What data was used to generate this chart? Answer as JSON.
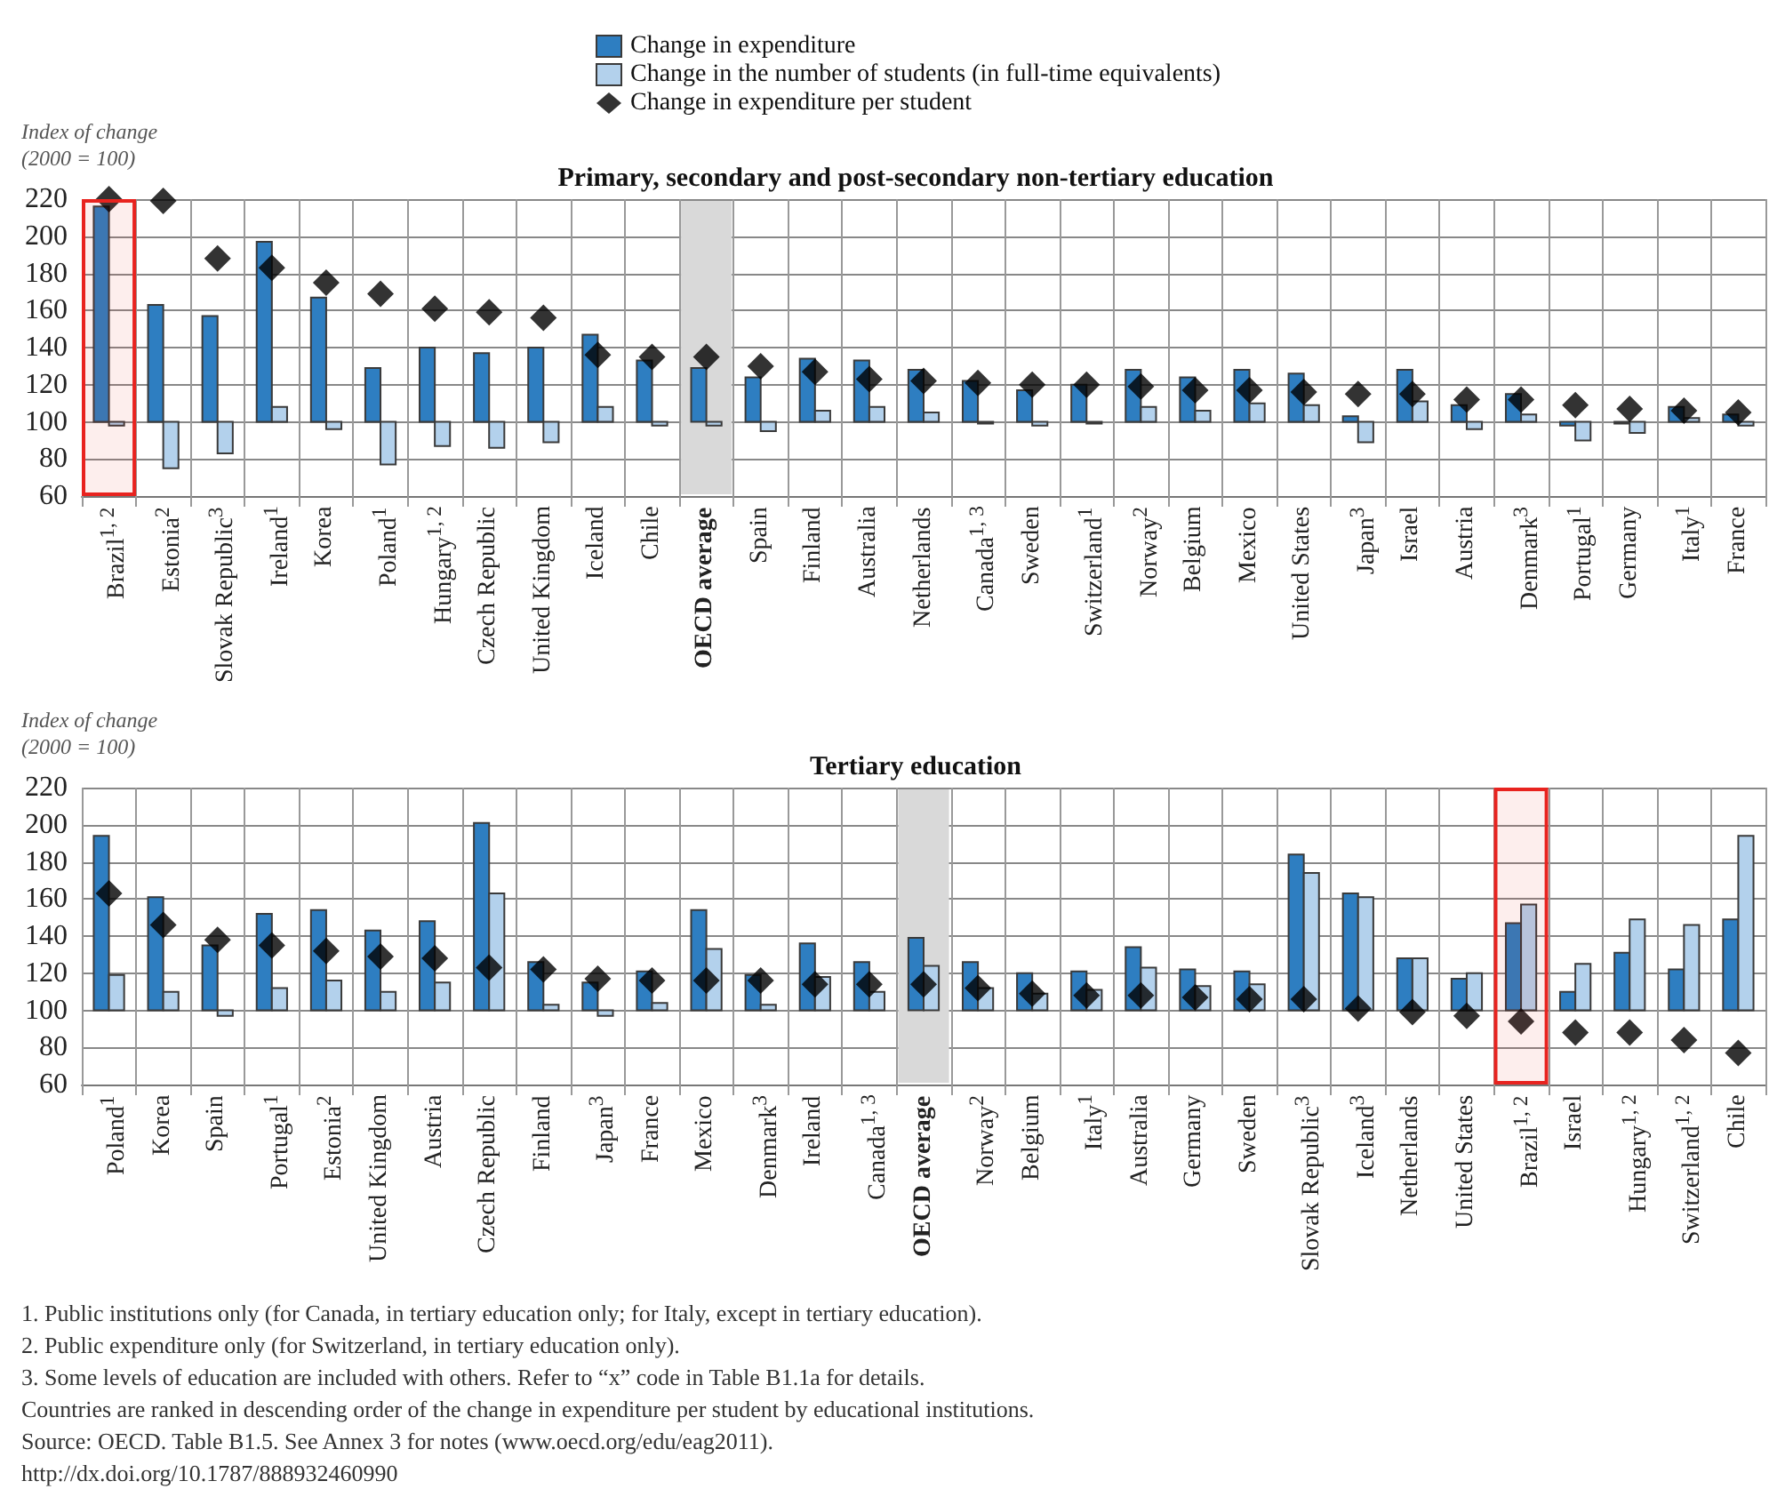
{
  "chart_data": [
    {
      "type": "bar",
      "title": "Primary, secondary and post-secondary non-tertiary education",
      "ylabel": "Index of change\n(2000 = 100)",
      "categories": [
        "Brazil$^{1, 2}$",
        "Estonia$^{2}$",
        "Slovak Republic$^{3}$",
        "Ireland$^{1}$",
        "Korea",
        "Poland$^{1}$",
        "Hungary$^{1, 2}$",
        "Czech Republic",
        "United Kingdom",
        "Iceland",
        "Chile",
        "OECD average",
        "Spain",
        "Finland",
        "Australia",
        "Netherlands",
        "Canada$^{1, 3}$",
        "Sweden",
        "Switzerland$^{1}$",
        "Norway$^{2}$",
        "Belgium",
        "Mexico",
        "United States",
        "Japan$^{3}$",
        "Israel",
        "Austria",
        "Denmark$^{3}$",
        "Portugal$^{1}$",
        "Germany",
        "Italy$^{1}$",
        "France"
      ],
      "series": [
        {
          "name": "Change in expenditure",
          "color": "#2e7ec1",
          "base": [
            100,
            100,
            100,
            100,
            100,
            100,
            100,
            100,
            100,
            100,
            100,
            100,
            100,
            100,
            100,
            100,
            100,
            100,
            100,
            100,
            100,
            100,
            100,
            100,
            100,
            100,
            100,
            100,
            100,
            100,
            100
          ],
          "values": [
            116,
            63,
            57,
            97,
            67,
            29,
            40,
            37,
            40,
            47,
            33,
            29,
            24,
            34,
            33,
            28,
            22,
            17,
            20,
            28,
            24,
            28,
            26,
            3,
            28,
            9,
            15,
            -2,
            -1,
            8,
            4
          ]
        },
        {
          "name": "Change in the number of students (in full-time equivalents)",
          "color": "#b3d1ec",
          "base": [
            100,
            100,
            100,
            100,
            100,
            100,
            100,
            100,
            100,
            100,
            100,
            100,
            100,
            100,
            100,
            100,
            100,
            100,
            100,
            100,
            100,
            100,
            100,
            100,
            100,
            100,
            100,
            100,
            100,
            100,
            100
          ],
          "values": [
            -2,
            -25,
            -17,
            8,
            -4,
            -23,
            -13,
            -14,
            -11,
            8,
            -2,
            -2,
            -5,
            6,
            8,
            5,
            -1,
            -2,
            -1,
            8,
            6,
            10,
            9,
            -11,
            11,
            -4,
            4,
            -10,
            -6,
            2,
            -2
          ]
        },
        {
          "name": "Change in expenditure per student",
          "type": "scatter",
          "color": "#000000",
          "marker": "diamond",
          "values": [
            220,
            219,
            188,
            183,
            175,
            169,
            161,
            159,
            156,
            136,
            135,
            135,
            130,
            127,
            123,
            122,
            121,
            120,
            120,
            119,
            117,
            117,
            116,
            115,
            115,
            112,
            112,
            109,
            107,
            106,
            105
          ]
        }
      ],
      "ylim": [
        60,
        220
      ],
      "yticks": [
        60,
        80,
        100,
        120,
        140,
        160,
        180,
        200,
        220
      ],
      "grid": true,
      "legend": "top",
      "bands": [
        {
          "axis": "x",
          "from": "OECD average",
          "to": "OECD average",
          "color": "#d9d9d9"
        },
        {
          "axis": "x",
          "from": "Brazil$^{1, 2}$",
          "to": "Brazil$^{1, 2}$",
          "color": "#e8231f"
        }
      ]
    },
    {
      "type": "bar",
      "title": "Tertiary education",
      "ylabel": "Index of change\n(2000 = 100)",
      "categories": [
        "Poland$^{1}$",
        "Korea",
        "Spain",
        "Portugal$^{1}$",
        "Estonia$^{2}$",
        "United Kingdom",
        "Austria",
        "Czech Republic",
        "Finland",
        "Japan$^{3}$",
        "France",
        "Mexico",
        "Denmark$^{3}$",
        "Ireland",
        "Canada$^{1, 3}$",
        "OECD average",
        "Norway$^{2}$",
        "Belgium",
        "Italy$^{1}$",
        "Australia",
        "Germany",
        "Sweden",
        "Slovak Republic$^{3}$",
        "Iceland$^{3}$",
        "Netherlands",
        "United States",
        "Brazil$^{1, 2}$",
        "Israel",
        "Hungary$^{1, 2}$",
        "Switzerland$^{1, 2}$",
        "Chile"
      ],
      "series": [
        {
          "color": "#2e7ec1",
          "base": [
            100,
            100,
            100,
            100,
            100,
            100,
            100,
            100,
            100,
            100,
            100,
            100,
            100,
            100,
            100,
            100,
            100,
            100,
            100,
            100,
            100,
            100,
            100,
            100,
            100,
            100,
            100,
            100,
            100,
            100,
            100
          ],
          "values": [
            94,
            61,
            35,
            52,
            54,
            43,
            48,
            101,
            26,
            15,
            21,
            54,
            19,
            36,
            26,
            39,
            26,
            20,
            21,
            34,
            22,
            21,
            84,
            63,
            28,
            17,
            47,
            10,
            31,
            22,
            49
          ]
        },
        {
          "color": "#b3d1ec",
          "base": [
            100,
            100,
            100,
            100,
            100,
            100,
            100,
            100,
            100,
            100,
            100,
            100,
            100,
            100,
            100,
            100,
            100,
            100,
            100,
            100,
            100,
            100,
            100,
            100,
            100,
            100,
            100,
            100,
            100,
            100,
            100
          ],
          "values": [
            19,
            10,
            -3,
            12,
            16,
            10,
            15,
            63,
            3,
            -3,
            4,
            33,
            3,
            18,
            10,
            24,
            12,
            9,
            11,
            23,
            13,
            14,
            74,
            61,
            28,
            20,
            57,
            25,
            49,
            46,
            94
          ]
        },
        {
          "type": "scatter",
          "color": "#000000",
          "marker": "diamond",
          "values": [
            163,
            146,
            138,
            135,
            132,
            129,
            128,
            123,
            122,
            117,
            116,
            116,
            116,
            114,
            114,
            114,
            112,
            109,
            108,
            108,
            107,
            106,
            106,
            101,
            99,
            97,
            94,
            88,
            88,
            84,
            77
          ]
        }
      ],
      "ylim": [
        60,
        220
      ],
      "yticks": [
        60,
        80,
        100,
        120,
        140,
        160,
        180,
        200,
        220
      ],
      "grid": true,
      "legend": false,
      "bands": [
        {
          "axis": "x",
          "from": "OECD average",
          "to": "OECD average",
          "color": "#d9d9d9"
        },
        {
          "axis": "x",
          "from": "Brazil$^{1, 2}$",
          "to": "Brazil$^{1, 2}$",
          "color": "#e8231f"
        }
      ],
      "annotations": [
        "1. Public institutions only (for Canada, in tertiary education only; for Italy, except in tertiary education).",
        "2. Public expenditure only (for Switzerland, in tertiary education only).",
        "3. Some levels of education are included with others. Refer to “x” code in Table B1.1a for details.",
        "Countries are ranked in descending order of the change in expenditure per student by educational institutions.",
        "Source: OECD. Table B1.5. See Annex 3 for notes (www.oecd.org/edu/eag2011).",
        "http://dx.doi.org/10.1787/888932460990"
      ]
    }
  ]
}
